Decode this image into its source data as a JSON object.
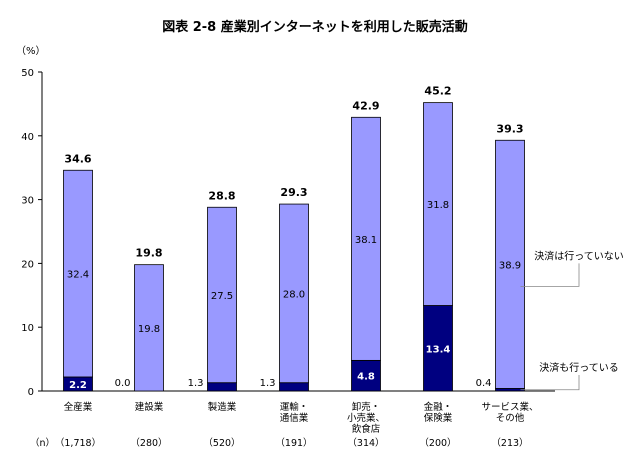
{
  "chart_data": {
    "type": "bar",
    "stacked": true,
    "title": "図表 2-8 産業別インターネットを利用した販売活動",
    "ylabel": "（%）",
    "ylim": [
      0,
      50
    ],
    "yticks": [
      "0",
      "10",
      "20",
      "30",
      "40",
      "50"
    ],
    "grid": false,
    "categories": [
      [
        "全産業"
      ],
      [
        "建設業"
      ],
      [
        "製造業"
      ],
      [
        "運輸・",
        "通信業"
      ],
      [
        "卸売・",
        "小売業、",
        "飲食店"
      ],
      [
        "金融・",
        "保険業"
      ],
      [
        "サービス業、",
        "その他"
      ]
    ],
    "n_label": "（n）",
    "n_values": [
      "（1,718）",
      "（280）",
      "（520）",
      "（191）",
      "（314）",
      "（200）",
      "（213）"
    ],
    "series": [
      {
        "name": "決済も行っている",
        "color": "#000080",
        "values": [
          2.2,
          0.0,
          1.3,
          1.3,
          4.8,
          13.4,
          0.4
        ],
        "labels": [
          "2.2",
          "0.0",
          "1.3",
          "1.3",
          "4.8",
          "13.4",
          "0.4"
        ]
      },
      {
        "name": "決済は行っていない",
        "color": "#9999ff",
        "values": [
          32.4,
          19.8,
          27.5,
          28.0,
          38.1,
          31.8,
          38.9
        ],
        "labels": [
          "32.4",
          "19.8",
          "27.5",
          "28.0",
          "38.1",
          "31.8",
          "38.9"
        ]
      }
    ],
    "totals": [
      34.6,
      19.8,
      28.8,
      29.3,
      42.9,
      45.2,
      39.3
    ],
    "total_labels": [
      "34.6",
      "19.8",
      "28.8",
      "29.3",
      "42.9",
      "45.2",
      "39.3"
    ]
  }
}
